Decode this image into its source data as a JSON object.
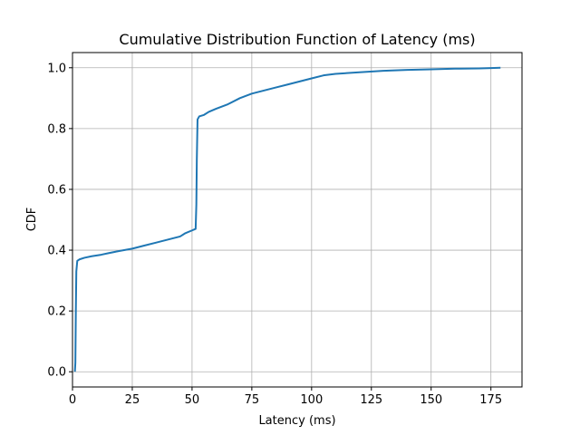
{
  "chart_data": {
    "type": "line",
    "title": "Cumulative Distribution Function of Latency (ms)",
    "xlabel": "Latency (ms)",
    "ylabel": "CDF",
    "xlim": [
      0,
      188
    ],
    "ylim": [
      -0.05,
      1.05
    ],
    "grid": true,
    "line_color": "#1f77b4",
    "x_ticks": [
      0,
      25,
      50,
      75,
      100,
      125,
      150,
      175
    ],
    "x_tick_labels": [
      "0",
      "25",
      "50",
      "75",
      "100",
      "125",
      "150",
      "175"
    ],
    "y_ticks": [
      0.0,
      0.2,
      0.4,
      0.6,
      0.8,
      1.0
    ],
    "y_tick_labels": [
      "0.0",
      "0.2",
      "0.4",
      "0.6",
      "0.8",
      "1.0"
    ],
    "series": [
      {
        "x": [
          1.0,
          1.2,
          1.4,
          1.6,
          2.0,
          3,
          5,
          8,
          12,
          15,
          20,
          25,
          30,
          35,
          40,
          45,
          47,
          50,
          51.5,
          51.8,
          52.0,
          52.3,
          53,
          55,
          57,
          60,
          65,
          70,
          75,
          80,
          85,
          90,
          95,
          100,
          105,
          110,
          120,
          130,
          140,
          150,
          160,
          170,
          175,
          179
        ],
        "y": [
          0.0,
          0.03,
          0.2,
          0.33,
          0.365,
          0.37,
          0.375,
          0.38,
          0.385,
          0.39,
          0.398,
          0.405,
          0.415,
          0.425,
          0.435,
          0.445,
          0.455,
          0.465,
          0.47,
          0.55,
          0.7,
          0.83,
          0.84,
          0.845,
          0.855,
          0.865,
          0.88,
          0.9,
          0.915,
          0.925,
          0.935,
          0.945,
          0.955,
          0.965,
          0.975,
          0.98,
          0.985,
          0.99,
          0.993,
          0.995,
          0.997,
          0.998,
          0.999,
          1.0
        ]
      }
    ]
  }
}
